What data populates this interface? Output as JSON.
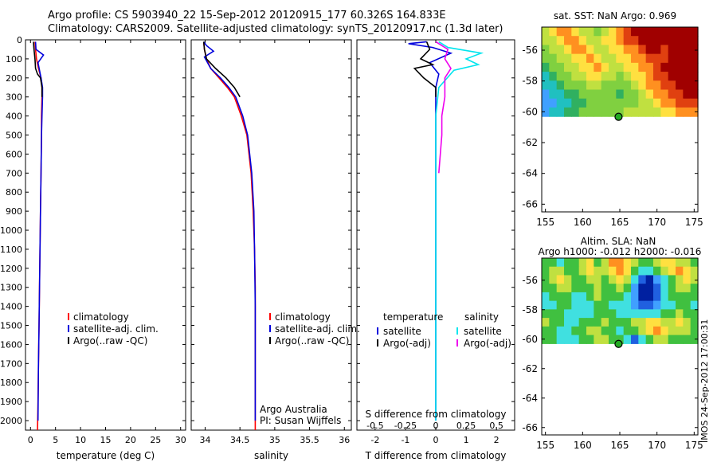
{
  "header": {
    "line1": "Argo profile: CS 5903940_22 15-Sep-2012 20120915_177 60.326S 164.833E",
    "line2": "Climatology: CARS2009. Satellite-adjusted climatology: synTS_20120917.nc (1.3d later)"
  },
  "side_stamp": "IMOS 24-Sep-2012 17:00:31",
  "colors": {
    "climatology": "#ff0000",
    "satellite": "#0000dd",
    "argo": "#000000",
    "sal_satellite": "#00e5ee",
    "sal_argo": "#ee00ee",
    "marker": "#22aa22"
  },
  "chart_data": [
    {
      "type": "line",
      "id": "temperature",
      "xlabel": "temperature (deg C)",
      "ylabel": "",
      "xlim": [
        -1,
        31
      ],
      "ylim": [
        2050,
        0
      ],
      "xticks": [
        0,
        5,
        10,
        15,
        20,
        25,
        30
      ],
      "yticks": [
        0,
        100,
        200,
        300,
        400,
        500,
        600,
        700,
        800,
        900,
        1000,
        1100,
        1200,
        1300,
        1400,
        1500,
        1600,
        1700,
        1800,
        1900,
        2000
      ],
      "legend": [
        "climatology",
        "satellite-adj. clim.",
        "Argo(..raw -QC)"
      ],
      "legend_position": "lower-right",
      "series": [
        {
          "name": "climatology",
          "color": "#ff0000",
          "x": [
            0.9,
            1.0,
            1.2,
            1.6,
            2.1,
            2.3,
            2.3,
            2.2,
            2.2,
            2.1,
            2.0,
            1.9,
            1.8,
            1.7,
            1.6,
            1.5,
            1.4
          ],
          "y": [
            10,
            50,
            100,
            150,
            200,
            250,
            300,
            400,
            500,
            700,
            900,
            1100,
            1300,
            1500,
            1700,
            1900,
            2050
          ]
        },
        {
          "name": "satellite-adj. clim.",
          "color": "#0000dd",
          "x": [
            1.0,
            1.1,
            2.6,
            1.5,
            2.1,
            2.4,
            2.4,
            2.3,
            2.2,
            2.1,
            2.0,
            1.9,
            1.8,
            1.7,
            1.6,
            1.5
          ],
          "y": [
            10,
            50,
            80,
            120,
            200,
            250,
            300,
            400,
            500,
            700,
            900,
            1100,
            1300,
            1500,
            1700,
            2000
          ]
        },
        {
          "name": "Argo(..raw -QC)",
          "color": "#000000",
          "x": [
            0.6,
            0.7,
            0.9,
            1.0,
            1.4,
            2.0,
            2.3,
            2.3
          ],
          "y": [
            10,
            50,
            100,
            150,
            180,
            200,
            250,
            300
          ]
        }
      ]
    },
    {
      "type": "line",
      "id": "salinity",
      "xlabel": "salinity",
      "ylabel": "",
      "xlim": [
        33.8,
        36.1
      ],
      "ylim": [
        2050,
        0
      ],
      "xticks": [
        34,
        34.5,
        35,
        35.5,
        36
      ],
      "legend": [
        "climatology",
        "satellite-adj. clim.",
        "Argo(..raw -QC)"
      ],
      "legend_position": "lower-right",
      "annotations": [
        "Argo Australia",
        "PI: Susan Wijffels"
      ],
      "series": [
        {
          "name": "climatology",
          "color": "#ff0000",
          "x": [
            33.98,
            33.99,
            34.02,
            34.08,
            34.2,
            34.32,
            34.42,
            34.52,
            34.6,
            34.66,
            34.69,
            34.71,
            34.72,
            34.72,
            34.72
          ],
          "y": [
            10,
            50,
            100,
            150,
            200,
            250,
            300,
            400,
            500,
            700,
            900,
            1100,
            1300,
            1600,
            2050
          ]
        },
        {
          "name": "satellite-adj. clim.",
          "color": "#0000dd",
          "x": [
            33.98,
            34.02,
            34.12,
            33.99,
            34.08,
            34.22,
            34.34,
            34.44,
            34.54,
            34.61,
            34.67,
            34.7,
            34.71,
            34.72,
            34.72
          ],
          "y": [
            10,
            30,
            60,
            90,
            150,
            200,
            250,
            300,
            400,
            500,
            700,
            900,
            1100,
            1400,
            2000
          ]
        },
        {
          "name": "Argo(..raw -QC)",
          "color": "#000000",
          "x": [
            33.98,
            33.99,
            34.02,
            34.15,
            34.3,
            34.42,
            34.5
          ],
          "y": [
            10,
            50,
            100,
            150,
            200,
            250,
            300
          ]
        }
      ]
    },
    {
      "type": "line",
      "id": "differences",
      "xlabel": "T difference from climatology",
      "xlabel_top": "S difference from climatology",
      "xlim": [
        -2.6,
        2.6
      ],
      "ylim": [
        2050,
        0
      ],
      "xticks": [
        -2,
        -1,
        0,
        1,
        2
      ],
      "xticks_top": [
        -0.5,
        -0.25,
        0,
        0.25,
        0.5
      ],
      "legend_temperature_title": "temperature",
      "legend_salinity_title": "salinity",
      "legend_temperature": [
        "satellite",
        "Argo(-adj)"
      ],
      "legend_salinity": [
        "satellite",
        "Argo(-adj)"
      ],
      "legend_position": "lower",
      "series": [
        {
          "name": "temperature satellite",
          "color": "#0000dd",
          "x": [
            -0.3,
            -0.9,
            -0.1,
            0.5,
            -0.2,
            0.1,
            0.0,
            0.0,
            0.0,
            0.0,
            0.0,
            0.0,
            0.0,
            0.0
          ],
          "y": [
            10,
            20,
            40,
            70,
            120,
            180,
            250,
            320,
            400,
            600,
            900,
            1200,
            1600,
            2000
          ]
        },
        {
          "name": "temperature Argo(-adj)",
          "color": "#000000",
          "x": [
            -0.3,
            -0.2,
            -0.5,
            -0.1,
            -0.7,
            -0.4,
            0.0,
            0.0
          ],
          "y": [
            10,
            50,
            100,
            130,
            150,
            200,
            250,
            300
          ]
        },
        {
          "name": "salinity satellite",
          "color": "#00e5ee",
          "x": [
            0.1,
            0.4,
            1.5,
            1.0,
            1.4,
            0.6,
            0.1,
            0.0,
            0.0,
            0.0,
            0.0,
            0.0,
            0.0
          ],
          "y": [
            10,
            40,
            70,
            100,
            130,
            160,
            250,
            400,
            600,
            900,
            1200,
            1600,
            2000
          ]
        },
        {
          "name": "salinity Argo(-adj)",
          "color": "#ee00ee",
          "x": [
            0.0,
            0.4,
            0.3,
            0.5,
            0.3,
            0.3,
            0.2,
            0.2,
            0.1
          ],
          "y": [
            10,
            50,
            100,
            150,
            200,
            300,
            400,
            500,
            700
          ]
        }
      ]
    },
    {
      "type": "heatmap",
      "id": "sst_map",
      "title": "sat. SST: NaN Argo: 0.969",
      "xlim": [
        154.5,
        175.5
      ],
      "ylim": [
        -66.5,
        -54.5
      ],
      "xticks": [
        155,
        160,
        165,
        170,
        175
      ],
      "yticks": [
        -56,
        -58,
        -60,
        -62,
        -64,
        -66
      ],
      "data_extent_lat": [
        -60.3,
        -54.5
      ],
      "argo_position": {
        "lon": 164.833,
        "lat": -60.326
      },
      "palette": [
        "#40a0ff",
        "#20c0c0",
        "#30b060",
        "#80d040",
        "#c0e040",
        "#ffe040",
        "#ff9020",
        "#e04010",
        "#a00000"
      ],
      "grid": [
        [
          4,
          5,
          6,
          6,
          5,
          4,
          4,
          3,
          4,
          5,
          6,
          7,
          8,
          8,
          8,
          8,
          8,
          8,
          8,
          8,
          8
        ],
        [
          4,
          4,
          5,
          6,
          6,
          5,
          4,
          4,
          5,
          5,
          6,
          7,
          7,
          8,
          8,
          8,
          8,
          8,
          8,
          8,
          8
        ],
        [
          3,
          4,
          4,
          5,
          6,
          6,
          5,
          4,
          4,
          5,
          5,
          6,
          6,
          7,
          8,
          8,
          7,
          8,
          8,
          8,
          8
        ],
        [
          3,
          3,
          4,
          4,
          5,
          5,
          6,
          5,
          4,
          4,
          5,
          5,
          6,
          6,
          7,
          7,
          7,
          8,
          8,
          8,
          8
        ],
        [
          2,
          3,
          3,
          4,
          4,
          5,
          5,
          6,
          5,
          4,
          4,
          5,
          5,
          6,
          6,
          7,
          8,
          8,
          8,
          8,
          8
        ],
        [
          1,
          2,
          3,
          3,
          4,
          4,
          5,
          5,
          4,
          4,
          3,
          4,
          5,
          5,
          6,
          7,
          7,
          8,
          8,
          8,
          8
        ],
        [
          1,
          1,
          2,
          3,
          3,
          3,
          4,
          4,
          3,
          3,
          3,
          3,
          4,
          5,
          6,
          6,
          7,
          7,
          8,
          8,
          8
        ],
        [
          0,
          1,
          1,
          2,
          2,
          3,
          3,
          3,
          3,
          3,
          2,
          3,
          3,
          4,
          5,
          6,
          6,
          7,
          7,
          8,
          8
        ],
        [
          0,
          0,
          1,
          1,
          2,
          2,
          3,
          3,
          3,
          3,
          3,
          3,
          3,
          4,
          4,
          5,
          6,
          6,
          7,
          7,
          7
        ],
        [
          0,
          1,
          1,
          2,
          2,
          3,
          3,
          3,
          3,
          3,
          3,
          4,
          4,
          4,
          4,
          4,
          5,
          5,
          6,
          6,
          6
        ]
      ]
    },
    {
      "type": "heatmap",
      "id": "sla_map",
      "title": "Altim. SLA: NaN",
      "subtitle": "Argo h1000: -0.012 h2000: -0.016",
      "xlim": [
        154.5,
        175.5
      ],
      "ylim": [
        -66.5,
        -54.5
      ],
      "xticks": [
        155,
        160,
        165,
        170,
        175
      ],
      "yticks": [
        -56,
        -58,
        -60,
        -62,
        -64,
        -66
      ],
      "data_extent_lat": [
        -60.3,
        -54.5
      ],
      "argo_position": {
        "lon": 164.833,
        "lat": -60.326
      },
      "palette": [
        "#0020a0",
        "#2060e0",
        "#40a0ff",
        "#40e0e0",
        "#40c040",
        "#c0e040",
        "#ffe040",
        "#ff9020",
        "#e04010"
      ],
      "grid": [
        [
          4,
          4,
          3,
          4,
          4,
          5,
          6,
          4,
          5,
          7,
          7,
          6,
          5,
          4,
          4,
          5,
          6,
          6,
          5,
          5,
          4
        ],
        [
          4,
          5,
          5,
          4,
          4,
          5,
          6,
          5,
          5,
          6,
          7,
          6,
          4,
          3,
          3,
          4,
          5,
          6,
          7,
          6,
          5
        ],
        [
          4,
          5,
          6,
          5,
          4,
          4,
          5,
          5,
          4,
          5,
          6,
          5,
          3,
          1,
          0,
          2,
          3,
          4,
          5,
          6,
          5
        ],
        [
          4,
          4,
          5,
          5,
          4,
          4,
          4,
          5,
          4,
          4,
          5,
          4,
          2,
          0,
          0,
          1,
          3,
          4,
          5,
          5,
          4
        ],
        [
          3,
          4,
          4,
          4,
          3,
          3,
          4,
          5,
          4,
          4,
          4,
          3,
          2,
          0,
          0,
          1,
          3,
          4,
          4,
          4,
          4
        ],
        [
          3,
          3,
          4,
          4,
          3,
          3,
          3,
          4,
          4,
          3,
          3,
          3,
          2,
          1,
          1,
          2,
          3,
          3,
          4,
          4,
          3
        ],
        [
          4,
          4,
          4,
          3,
          3,
          3,
          3,
          4,
          4,
          4,
          3,
          3,
          3,
          3,
          3,
          3,
          4,
          4,
          5,
          4,
          4
        ],
        [
          5,
          4,
          4,
          3,
          3,
          4,
          4,
          4,
          5,
          4,
          4,
          4,
          5,
          5,
          6,
          6,
          5,
          5,
          6,
          5,
          4
        ],
        [
          4,
          4,
          3,
          3,
          4,
          4,
          5,
          5,
          4,
          4,
          3,
          4,
          4,
          5,
          6,
          7,
          6,
          5,
          5,
          5,
          4
        ],
        [
          4,
          4,
          3,
          3,
          3,
          4,
          4,
          5,
          5,
          4,
          4,
          3,
          1,
          3,
          4,
          5,
          5,
          4,
          4,
          4,
          4
        ]
      ]
    }
  ]
}
